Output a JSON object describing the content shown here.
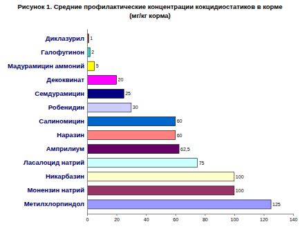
{
  "chart_data": {
    "type": "bar",
    "orientation": "horizontal",
    "title": "Рисунок 1. Средние профилактические концентрации кокцидиостатиков в корме",
    "subtitle": "(мг/кг корма)",
    "categories": [
      "Диклазурил",
      "Галофугинон",
      "Мадурамицин аммоний",
      "Декоквинат",
      "Семдурамицин",
      "Робенидин",
      "Салиномицин",
      "Наразин",
      "Амприлиум",
      "Ласалоцид натрий",
      "Никарбазин",
      "Монензин натрий",
      "Метилхлорпиндол"
    ],
    "values": [
      1,
      2,
      5,
      20,
      25,
      30,
      60,
      60,
      62.5,
      75,
      100,
      100,
      125
    ],
    "value_labels": [
      "1",
      "2",
      "5",
      "20",
      "25",
      "30",
      "60",
      "60",
      "62,5",
      "75",
      "100",
      "100",
      "125"
    ],
    "colors": [
      "#800000",
      "#33cccc",
      "#ffff00",
      "#ff00ff",
      "#000080",
      "#ccccff",
      "#0066cc",
      "#ff8080",
      "#660066",
      "#ccffff",
      "#ffffcc",
      "#993366",
      "#9999ff"
    ],
    "xlim": [
      0,
      140
    ],
    "xticks": [
      0,
      20,
      40,
      60,
      80,
      100,
      120,
      140
    ],
    "grid": false,
    "data_labels": true
  }
}
